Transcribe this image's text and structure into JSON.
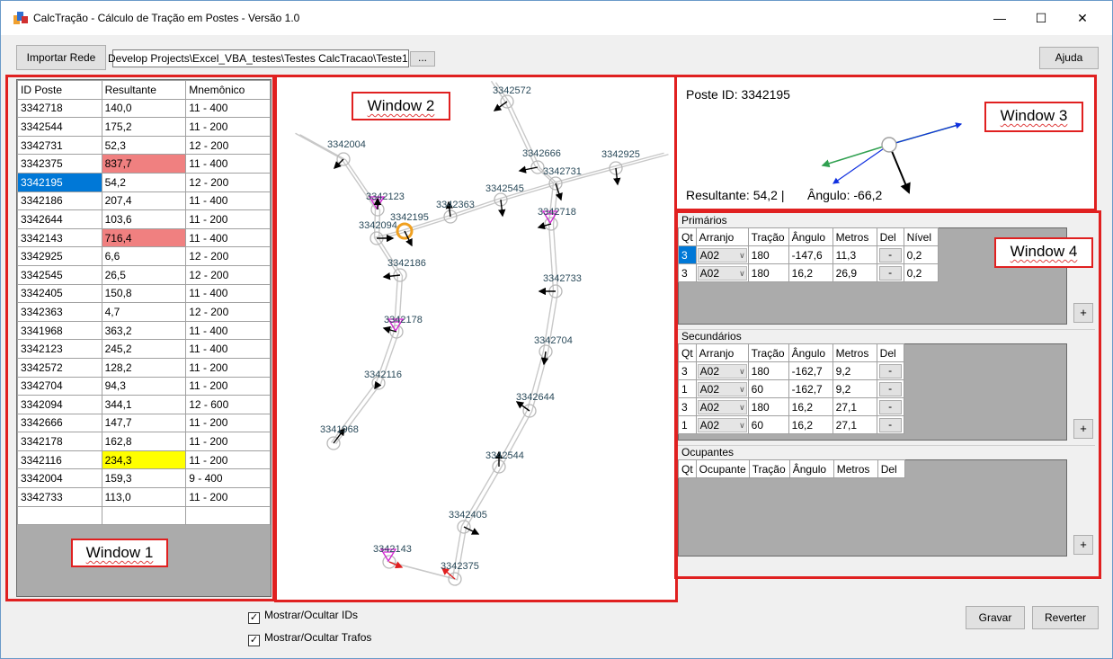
{
  "window": {
    "title": "CalcTração - Cálculo de Tração em Postes - Versão 1.0",
    "minimize": "—",
    "maximize": "☐",
    "close": "✕"
  },
  "toolbar": {
    "import_label": "Importar Rede",
    "path_value": "Develop Projects\\Excel_VBA_testes\\Testes CalcTracao\\Teste1",
    "browse_label": "...",
    "help_label": "Ajuda"
  },
  "annotations": {
    "w1": "Window 1",
    "w2": "Window 2",
    "w3": "Window 3",
    "w4": "Window 4"
  },
  "poles_table": {
    "headers": [
      "ID Poste",
      "Resultante",
      "Mnemônico"
    ],
    "rows": [
      [
        "3342718",
        "140,0",
        "11 - 400"
      ],
      [
        "3342544",
        "175,2",
        "11 - 200"
      ],
      [
        "3342731",
        "52,3",
        "12 - 200"
      ],
      [
        "3342375",
        "837,7",
        "11 - 400"
      ],
      [
        "3342195",
        "54,2",
        "12 - 200"
      ],
      [
        "3342186",
        "207,4",
        "11 - 400"
      ],
      [
        "3342644",
        "103,6",
        "11 - 200"
      ],
      [
        "3342143",
        "716,4",
        "11 - 400"
      ],
      [
        "3342925",
        "6,6",
        "12 - 200"
      ],
      [
        "3342545",
        "26,5",
        "12 - 200"
      ],
      [
        "3342405",
        "150,8",
        "11 - 400"
      ],
      [
        "3342363",
        "4,7",
        "12 - 200"
      ],
      [
        "3341968",
        "363,2",
        "11 - 400"
      ],
      [
        "3342123",
        "245,2",
        "11 - 400"
      ],
      [
        "3342572",
        "128,2",
        "11 - 200"
      ],
      [
        "3342704",
        "94,3",
        "11 - 200"
      ],
      [
        "3342094",
        "344,1",
        "12 - 600"
      ],
      [
        "3342666",
        "147,7",
        "11 - 200"
      ],
      [
        "3342178",
        "162,8",
        "11 - 200"
      ],
      [
        "3342116",
        "234,3",
        "11 - 200"
      ],
      [
        "3342004",
        "159,3",
        "9 - 400"
      ],
      [
        "3342733",
        "113,0",
        "11 - 200"
      ]
    ],
    "selected_row": 4,
    "red_rows": [
      3,
      7
    ],
    "yellow_rows": [
      19
    ],
    "highlight_colors": {
      "selected": "#0078d7",
      "red": "#f08080",
      "yellow": "#ffff00"
    }
  },
  "map": {
    "labels": [
      "3342572",
      "3342004",
      "3342666",
      "3342925",
      "3342731",
      "3342123",
      "3342545",
      "3342363",
      "3342094",
      "3342195",
      "3342718",
      "3342186",
      "3342733",
      "3342178",
      "3342704",
      "3342116",
      "3342644",
      "3341968",
      "3342544",
      "3342405",
      "3342143",
      "3342375"
    ],
    "selected_color": "#f0a020",
    "transformer_color": "#d020d0"
  },
  "detail": {
    "pole_id": "Poste ID: 3342195",
    "resultant": "Resultante: 54,2  |",
    "angle": "Ângulo: -66,2"
  },
  "primarios": {
    "title": "Primários",
    "headers": [
      "Qt",
      "Arranjo",
      "Tração",
      "Ângulo",
      "Metros",
      "Del",
      "Nível"
    ],
    "rows": [
      [
        "3",
        "A02",
        "180",
        "-147,6",
        "11,3",
        "-",
        "0,2"
      ],
      [
        "3",
        "A02",
        "180",
        "16,2",
        "26,9",
        "-",
        "0,2"
      ]
    ]
  },
  "secundarios": {
    "title": "Secundários",
    "headers": [
      "Qt",
      "Arranjo",
      "Tração",
      "Ângulo",
      "Metros",
      "Del"
    ],
    "rows": [
      [
        "3",
        "A02",
        "180",
        "-162,7",
        "9,2",
        "-"
      ],
      [
        "1",
        "A02",
        "60",
        "-162,7",
        "9,2",
        "-"
      ],
      [
        "3",
        "A02",
        "180",
        "16,2",
        "27,1",
        "-"
      ],
      [
        "1",
        "A02",
        "60",
        "16,2",
        "27,1",
        "-"
      ]
    ]
  },
  "ocupantes": {
    "title": "Ocupantes",
    "headers": [
      "Qt",
      "Ocupante",
      "Tração",
      "Ângulo",
      "Metros",
      "Del"
    ]
  },
  "add_label": "+",
  "options": {
    "show_ids": "Mostrar/Ocultar IDs",
    "show_trafos": "Mostrar/Ocultar Trafos"
  },
  "footer": {
    "save_label": "Gravar",
    "revert_label": "Reverter"
  }
}
